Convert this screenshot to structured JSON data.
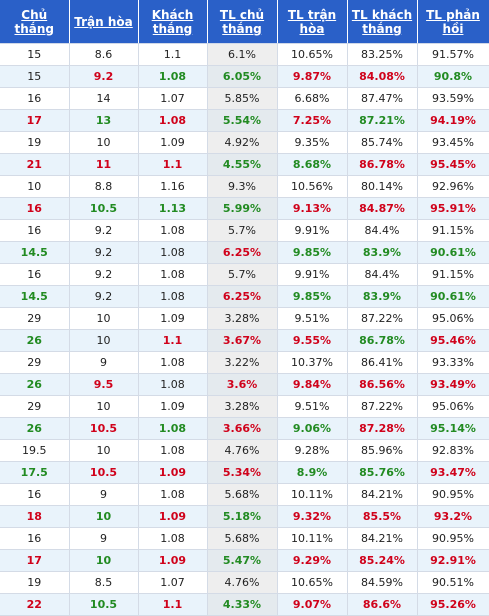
{
  "headers": [
    "Chủ thắng",
    "Trận hòa",
    "Khách thắng",
    "TL chủ thắng",
    "TL trận hòa",
    "TL khách thắng",
    "TL phản hồi"
  ],
  "colors": {
    "header_bg": "#2a60c8",
    "red": "#d0021b",
    "green": "#228b22",
    "row_alt": "#e9f3fb"
  },
  "rows": [
    {
      "style": "plain",
      "cells": [
        "15",
        "8.6",
        "1.1",
        "6.1%",
        "10.65%",
        "83.25%",
        "91.57%"
      ],
      "colors": [
        "",
        "",
        "",
        "",
        "",
        "",
        ""
      ]
    },
    {
      "style": "alt",
      "cells": [
        "15",
        "9.2",
        "1.08",
        "6.05%",
        "9.87%",
        "84.08%",
        "90.8%"
      ],
      "colors": [
        "",
        "red",
        "green",
        "green",
        "red",
        "red",
        "green"
      ]
    },
    {
      "style": "plain",
      "cells": [
        "16",
        "14",
        "1.07",
        "5.85%",
        "6.68%",
        "87.47%",
        "93.59%"
      ],
      "colors": [
        "",
        "",
        "",
        "",
        "",
        "",
        ""
      ]
    },
    {
      "style": "alt",
      "cells": [
        "17",
        "13",
        "1.08",
        "5.54%",
        "7.25%",
        "87.21%",
        "94.19%"
      ],
      "colors": [
        "red",
        "green",
        "red",
        "green",
        "red",
        "green",
        "red"
      ]
    },
    {
      "style": "plain",
      "cells": [
        "19",
        "10",
        "1.09",
        "4.92%",
        "9.35%",
        "85.74%",
        "93.45%"
      ],
      "colors": [
        "",
        "",
        "",
        "",
        "",
        "",
        ""
      ]
    },
    {
      "style": "alt",
      "cells": [
        "21",
        "11",
        "1.1",
        "4.55%",
        "8.68%",
        "86.78%",
        "95.45%"
      ],
      "colors": [
        "red",
        "red",
        "red",
        "green",
        "green",
        "red",
        "red"
      ]
    },
    {
      "style": "plain",
      "cells": [
        "10",
        "8.8",
        "1.16",
        "9.3%",
        "10.56%",
        "80.14%",
        "92.96%"
      ],
      "colors": [
        "",
        "",
        "",
        "",
        "",
        "",
        ""
      ]
    },
    {
      "style": "alt",
      "cells": [
        "16",
        "10.5",
        "1.13",
        "5.99%",
        "9.13%",
        "84.87%",
        "95.91%"
      ],
      "colors": [
        "red",
        "green",
        "green",
        "green",
        "red",
        "red",
        "red"
      ]
    },
    {
      "style": "plain",
      "cells": [
        "16",
        "9.2",
        "1.08",
        "5.7%",
        "9.91%",
        "84.4%",
        "91.15%"
      ],
      "colors": [
        "",
        "",
        "",
        "",
        "",
        "",
        ""
      ]
    },
    {
      "style": "alt",
      "cells": [
        "14.5",
        "9.2",
        "1.08",
        "6.25%",
        "9.85%",
        "83.9%",
        "90.61%"
      ],
      "colors": [
        "green",
        "",
        "",
        "red",
        "green",
        "green",
        "green"
      ]
    },
    {
      "style": "plain",
      "cells": [
        "16",
        "9.2",
        "1.08",
        "5.7%",
        "9.91%",
        "84.4%",
        "91.15%"
      ],
      "colors": [
        "",
        "",
        "",
        "",
        "",
        "",
        ""
      ]
    },
    {
      "style": "alt",
      "cells": [
        "14.5",
        "9.2",
        "1.08",
        "6.25%",
        "9.85%",
        "83.9%",
        "90.61%"
      ],
      "colors": [
        "green",
        "",
        "",
        "red",
        "green",
        "green",
        "green"
      ]
    },
    {
      "style": "plain",
      "cells": [
        "29",
        "10",
        "1.09",
        "3.28%",
        "9.51%",
        "87.22%",
        "95.06%"
      ],
      "colors": [
        "",
        "",
        "",
        "",
        "",
        "",
        ""
      ]
    },
    {
      "style": "alt",
      "cells": [
        "26",
        "10",
        "1.1",
        "3.67%",
        "9.55%",
        "86.78%",
        "95.46%"
      ],
      "colors": [
        "green",
        "",
        "red",
        "red",
        "red",
        "green",
        "red"
      ]
    },
    {
      "style": "plain",
      "cells": [
        "29",
        "9",
        "1.08",
        "3.22%",
        "10.37%",
        "86.41%",
        "93.33%"
      ],
      "colors": [
        "",
        "",
        "",
        "",
        "",
        "",
        ""
      ]
    },
    {
      "style": "alt",
      "cells": [
        "26",
        "9.5",
        "1.08",
        "3.6%",
        "9.84%",
        "86.56%",
        "93.49%"
      ],
      "colors": [
        "green",
        "red",
        "",
        "red",
        "red",
        "red",
        "red"
      ]
    },
    {
      "style": "plain",
      "cells": [
        "29",
        "10",
        "1.09",
        "3.28%",
        "9.51%",
        "87.22%",
        "95.06%"
      ],
      "colors": [
        "",
        "",
        "",
        "",
        "",
        "",
        ""
      ]
    },
    {
      "style": "alt",
      "cells": [
        "26",
        "10.5",
        "1.08",
        "3.66%",
        "9.06%",
        "87.28%",
        "95.14%"
      ],
      "colors": [
        "green",
        "red",
        "green",
        "red",
        "green",
        "red",
        "green"
      ]
    },
    {
      "style": "plain",
      "cells": [
        "19.5",
        "10",
        "1.08",
        "4.76%",
        "9.28%",
        "85.96%",
        "92.83%"
      ],
      "colors": [
        "",
        "",
        "",
        "",
        "",
        "",
        ""
      ]
    },
    {
      "style": "alt",
      "cells": [
        "17.5",
        "10.5",
        "1.09",
        "5.34%",
        "8.9%",
        "85.76%",
        "93.47%"
      ],
      "colors": [
        "green",
        "red",
        "red",
        "red",
        "green",
        "green",
        "red"
      ]
    },
    {
      "style": "plain",
      "cells": [
        "16",
        "9",
        "1.08",
        "5.68%",
        "10.11%",
        "84.21%",
        "90.95%"
      ],
      "colors": [
        "",
        "",
        "",
        "",
        "",
        "",
        ""
      ]
    },
    {
      "style": "alt",
      "cells": [
        "18",
        "10",
        "1.09",
        "5.18%",
        "9.32%",
        "85.5%",
        "93.2%"
      ],
      "colors": [
        "red",
        "green",
        "red",
        "green",
        "red",
        "red",
        "red"
      ]
    },
    {
      "style": "plain",
      "cells": [
        "16",
        "9",
        "1.08",
        "5.68%",
        "10.11%",
        "84.21%",
        "90.95%"
      ],
      "colors": [
        "",
        "",
        "",
        "",
        "",
        "",
        ""
      ]
    },
    {
      "style": "alt",
      "cells": [
        "17",
        "10",
        "1.09",
        "5.47%",
        "9.29%",
        "85.24%",
        "92.91%"
      ],
      "colors": [
        "red",
        "green",
        "red",
        "green",
        "red",
        "red",
        "red"
      ]
    },
    {
      "style": "plain",
      "cells": [
        "19",
        "8.5",
        "1.07",
        "4.76%",
        "10.65%",
        "84.59%",
        "90.51%"
      ],
      "colors": [
        "",
        "",
        "",
        "",
        "",
        "",
        ""
      ]
    },
    {
      "style": "alt",
      "cells": [
        "22",
        "10.5",
        "1.1",
        "4.33%",
        "9.07%",
        "86.6%",
        "95.26%"
      ],
      "colors": [
        "red",
        "green",
        "red",
        "green",
        "red",
        "red",
        "red"
      ]
    }
  ]
}
